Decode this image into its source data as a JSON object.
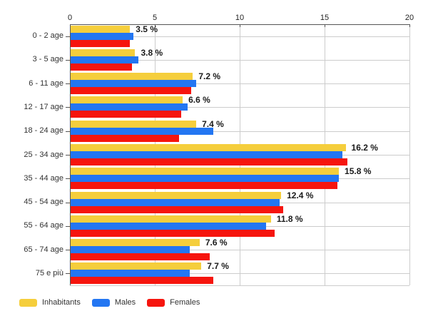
{
  "chart_data": {
    "type": "bar",
    "orientation": "horizontal",
    "title": "",
    "xlabel": "",
    "ylabel": "",
    "xlim": [
      0,
      20
    ],
    "x_tick_values": [
      0,
      5,
      10,
      15,
      20
    ],
    "x_tick_labels": [
      "0",
      "5",
      "10",
      "15",
      "20"
    ],
    "grid": true,
    "legend_position": "bottom-left",
    "categories": [
      "0 - 2 age",
      "3 - 5 age",
      "6 - 11 age",
      "12 - 17 age",
      "18 - 24 age",
      "25 - 34 age",
      "35 - 44 age",
      "45 - 54 age",
      "55 - 64 age",
      "65 - 74 age",
      "75 e più"
    ],
    "series": [
      {
        "name": "Inhabitants",
        "color": "#F5CE3C",
        "values": [
          3.5,
          3.8,
          7.2,
          6.6,
          7.4,
          16.2,
          15.8,
          12.4,
          11.8,
          7.6,
          7.7
        ]
      },
      {
        "name": "Males",
        "color": "#2376F2",
        "values": [
          3.7,
          4.0,
          7.4,
          6.9,
          8.4,
          16.0,
          15.8,
          12.3,
          11.5,
          7.0,
          7.0
        ]
      },
      {
        "name": "Females",
        "color": "#F6150E",
        "values": [
          3.5,
          3.6,
          7.1,
          6.5,
          6.4,
          16.3,
          15.7,
          12.5,
          12.0,
          8.2,
          8.4
        ]
      }
    ],
    "value_labels": [
      "3.5 %",
      "3.8 %",
      "7.2 %",
      "6.6 %",
      "7.4 %",
      "16.2 %",
      "15.8 %",
      "12.4 %",
      "11.8 %",
      "7.6 %",
      "7.7 %"
    ],
    "colors": {
      "grid": "#cccccc",
      "axis": "#555555",
      "tick_label": "#222222",
      "category_label": "#333333",
      "value_label": "#1a1a1a",
      "background": "#ffffff"
    }
  }
}
